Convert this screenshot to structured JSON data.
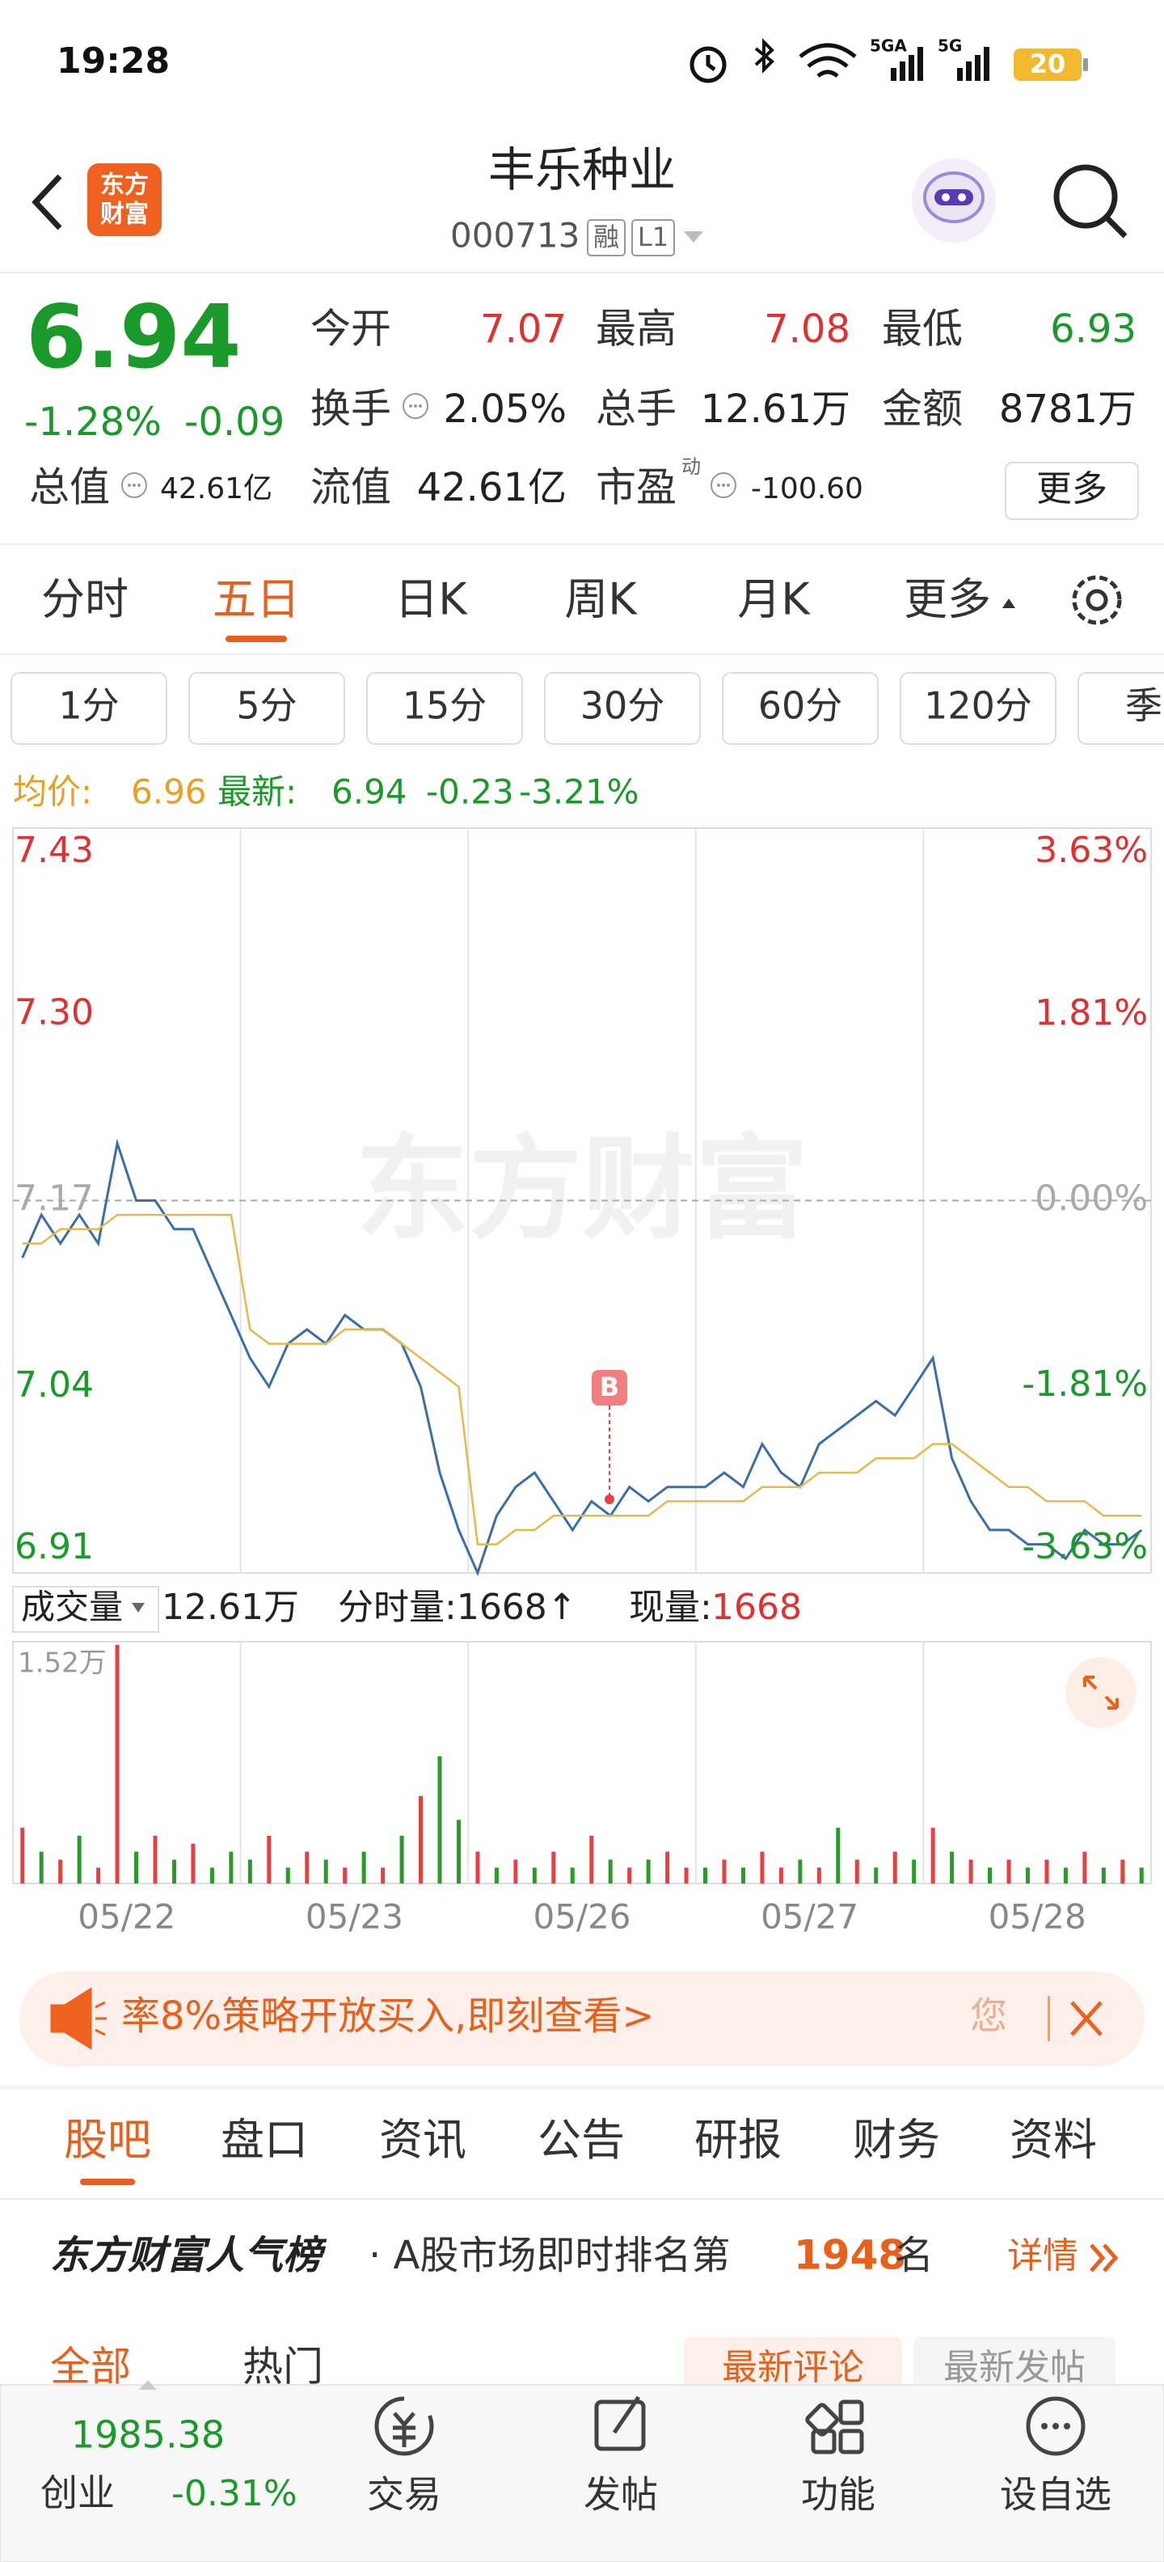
{
  "status_bar": {
    "time": "19:28",
    "network": [
      "5GA",
      "5G"
    ],
    "battery": "20"
  },
  "header": {
    "logo": [
      "东方",
      "财富"
    ],
    "title": "丰乐种业",
    "code": "000713",
    "tags": [
      "融",
      "L1"
    ]
  },
  "quote": {
    "price": "6.94",
    "change_pct": "-1.28%",
    "change": "-0.09",
    "fields": [
      {
        "label": "今开",
        "value": "7.07"
      },
      {
        "label": "最高",
        "value": "7.08"
      },
      {
        "label": "最低",
        "value": "6.93"
      },
      {
        "label": "换手",
        "value": "2.05%"
      },
      {
        "label": "总手",
        "value": "12.61万"
      },
      {
        "label": "金额",
        "value": "8781万"
      },
      {
        "label": "总值",
        "value": "42.61亿"
      },
      {
        "label": "流值",
        "value": "42.61亿"
      },
      {
        "label": "市盈",
        "value": "-100.60"
      }
    ],
    "pe_tag": "动",
    "more": "更多"
  },
  "period_tabs": {
    "items": [
      "分时",
      "五日",
      "日K",
      "周K",
      "月K",
      "更多"
    ],
    "active": 1
  },
  "intervals": [
    "1分",
    "5分",
    "15分",
    "30分",
    "60分",
    "120分",
    "季"
  ],
  "summary": {
    "avg_label": "均价:",
    "avg": "6.96",
    "latest_label": "最新:",
    "latest": "6.94",
    "change": "-0.23",
    "change_pct": "-3.21%"
  },
  "chart_data": [
    {
      "type": "line",
      "watermark": "东方财富",
      "x_labels": [
        "05/22",
        "05/23",
        "05/26",
        "05/27",
        "05/28"
      ],
      "series": [
        {
          "color": "#3a6ea8",
          "values": [
            7.13,
            7.16,
            7.14,
            7.16,
            7.14,
            7.21,
            7.17,
            7.17,
            7.15,
            7.15,
            7.12,
            7.09,
            7.06,
            7.04,
            7.07,
            7.08,
            7.07,
            7.09,
            7.08,
            7.08,
            7.07,
            7.04,
            6.98,
            6.94,
            6.91,
            6.95,
            6.97,
            6.98,
            6.96,
            6.94,
            6.96,
            6.95,
            6.97,
            6.96,
            6.97,
            6.97,
            6.97,
            6.98,
            6.97,
            7.0,
            6.98,
            6.97,
            7.0,
            7.01,
            7.02,
            7.03,
            7.02,
            7.04,
            7.06,
            6.99,
            6.96,
            6.94,
            6.94,
            6.93,
            6.93,
            6.92,
            6.94,
            6.93,
            6.93,
            6.94
          ]
        },
        {
          "color": "#e8b84a",
          "values": [
            7.14,
            7.14,
            7.15,
            7.15,
            7.15,
            7.16,
            7.16,
            7.16,
            7.16,
            7.16,
            7.16,
            7.16,
            7.08,
            7.07,
            7.07,
            7.07,
            7.07,
            7.08,
            7.08,
            7.08,
            7.07,
            7.06,
            7.05,
            7.04,
            6.93,
            6.93,
            6.94,
            6.94,
            6.95,
            6.95,
            6.95,
            6.95,
            6.95,
            6.95,
            6.96,
            6.96,
            6.96,
            6.96,
            6.96,
            6.97,
            6.97,
            6.97,
            6.98,
            6.98,
            6.98,
            6.99,
            6.99,
            6.99,
            7.0,
            7.0,
            6.99,
            6.98,
            6.97,
            6.97,
            6.96,
            6.96,
            6.96,
            6.95,
            6.95,
            6.95
          ]
        }
      ],
      "ylim": [
        6.91,
        7.43
      ],
      "yticks": [
        7.43,
        {
          "value": 7.3,
          "label": "7.30"
        },
        7.17,
        7.04,
        6.91
      ],
      "y2lim": [
        -3.63,
        3.63
      ],
      "y2ticks": [
        {
          "value": 3.63,
          "label": "3.63%"
        },
        {
          "value": 1.81,
          "label": "1.81%"
        },
        {
          "value": 0,
          "label": "0.00%"
        },
        {
          "value": -1.81,
          "label": "-1.81%"
        },
        {
          "value": -3.63,
          "label": "-3.63%"
        }
      ],
      "reference_line": 7.17,
      "marker": "B"
    },
    {
      "type": "bar",
      "title": "成交量",
      "total": "12.61万",
      "tick_volume": "分时量:1668↑",
      "now_label": "现量:",
      "now": "1668",
      "ylim": [
        0,
        1.52
      ],
      "yticks": [
        {
          "value": 1.52,
          "label": "1.52万"
        }
      ],
      "values": [
        0.35,
        0.2,
        0.15,
        0.3,
        0.1,
        1.5,
        0.2,
        0.3,
        0.15,
        0.25,
        0.1,
        0.2,
        0.15,
        0.3,
        0.1,
        0.2,
        0.15,
        0.1,
        0.2,
        0.1,
        0.3,
        0.55,
        0.8,
        0.4,
        0.2,
        0.1,
        0.15,
        0.1,
        0.2,
        0.1,
        0.3,
        0.15,
        0.1,
        0.15,
        0.2,
        0.1,
        0.1,
        0.15,
        0.1,
        0.2,
        0.1,
        0.15,
        0.1,
        0.35,
        0.15,
        0.1,
        0.2,
        0.15,
        0.35,
        0.2,
        0.15,
        0.1,
        0.15,
        0.1,
        0.15,
        0.1,
        0.2,
        0.1,
        0.15,
        0.1
      ],
      "colors": [
        "#e84040",
        "#2a9a2a",
        "#e84040",
        "#2a9a2a",
        "#e84040",
        "#e84040",
        "#2a9a2a",
        "#e84040",
        "#2a9a2a",
        "#e84040",
        "#2a9a2a",
        "#2a9a2a",
        "#2a9a2a",
        "#e84040",
        "#2a9a2a",
        "#e84040",
        "#2a9a2a",
        "#e84040",
        "#2a9a2a",
        "#e84040",
        "#2a9a2a",
        "#e84040",
        "#2a9a2a",
        "#2a9a2a",
        "#e84040",
        "#2a9a2a",
        "#e84040",
        "#2a9a2a",
        "#e84040",
        "#2a9a2a",
        "#e84040",
        "#2a9a2a",
        "#e84040",
        "#2a9a2a",
        "#e84040",
        "#e84040",
        "#2a9a2a",
        "#e84040",
        "#2a9a2a",
        "#e84040",
        "#e84040",
        "#2a9a2a",
        "#e84040",
        "#2a9a2a",
        "#e84040",
        "#2a9a2a",
        "#e84040",
        "#2a9a2a",
        "#e84040",
        "#2a9a2a",
        "#e84040",
        "#2a9a2a",
        "#e84040",
        "#2a9a2a",
        "#e84040",
        "#2a9a2a",
        "#e84040",
        "#2a9a2a",
        "#e84040",
        "#2a9a2a"
      ]
    }
  ],
  "banner": {
    "text": "率8%策略开放买入,即刻查看>",
    "tail": "您"
  },
  "info_tabs": {
    "items": [
      "股吧",
      "盘口",
      "资讯",
      "公告",
      "研报",
      "财务",
      "资料"
    ],
    "active": 0
  },
  "ranking": {
    "brand": "东方财富人气榜",
    "text": "· A股市场即时排名第",
    "rank": "1948",
    "suffix": "名",
    "link": "详情"
  },
  "feed_tabs": {
    "left": [
      "全部",
      "热门"
    ],
    "right": [
      "最新评论",
      "最新发帖"
    ]
  },
  "bottom_nav": {
    "index_value": "1985.38",
    "index_name": "创业",
    "index_change": "-0.31%",
    "items": [
      "交易",
      "发帖",
      "功能",
      "设自选"
    ]
  }
}
